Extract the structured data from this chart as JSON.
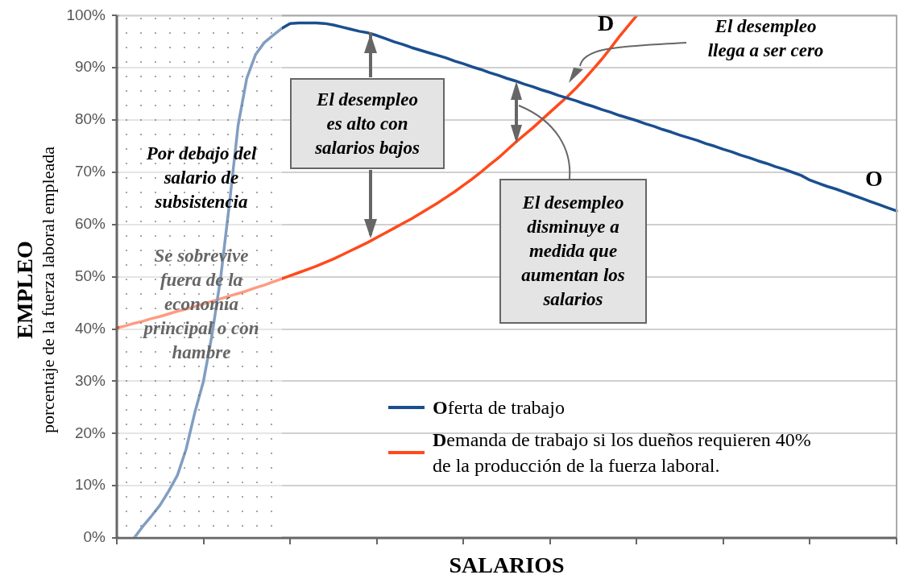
{
  "chart_data": {
    "type": "line",
    "xlabel": "SALARIOS",
    "ylabel": "EMPLEO\nporcentaje de la fuerza laboral empleada",
    "categories": [
      null,
      null,
      null,
      null,
      null,
      null,
      null,
      null,
      null,
      null,
      null,
      null,
      null,
      null,
      null,
      null,
      null,
      null,
      null,
      null,
      null,
      null,
      null,
      null,
      null,
      null,
      null,
      null,
      null,
      null,
      null,
      null,
      null,
      null,
      null,
      null,
      null,
      null,
      null,
      null,
      null,
      null,
      null,
      null,
      null,
      null,
      null,
      null,
      null,
      null,
      null,
      null,
      null,
      null,
      null,
      null,
      null,
      null,
      null,
      null,
      null,
      null,
      null,
      null,
      null,
      null,
      null,
      null,
      null,
      null,
      null,
      null,
      null,
      null,
      null,
      null,
      null,
      null,
      null,
      null,
      null,
      null,
      null,
      null,
      null,
      null,
      null,
      null,
      null,
      null,
      null
    ],
    "ylim": [
      0,
      100
    ],
    "yticks": [
      {
        "value": 0,
        "label": "0%"
      },
      {
        "value": 10,
        "label": "10%"
      },
      {
        "value": 20,
        "label": "20%"
      },
      {
        "value": 30,
        "label": "30%"
      },
      {
        "value": 40,
        "label": "40%"
      },
      {
        "value": 50,
        "label": "50%"
      },
      {
        "value": 60,
        "label": "60%"
      },
      {
        "value": 70,
        "label": "70%"
      },
      {
        "value": 80,
        "label": "80%"
      },
      {
        "value": 90,
        "label": "90%"
      },
      {
        "value": 100,
        "label": "100%"
      }
    ],
    "tick_labels": "y",
    "grid": "y",
    "legend": "bottom right",
    "marker": "none",
    "line_style": "solid",
    "series": [
      {
        "name": "Oferta de trabajo",
        "color": "#1a4f8f",
        "values": [
          null,
          null,
          0,
          2.2,
          4.2,
          6.3,
          9,
          12,
          17,
          24,
          30,
          39,
          50,
          64,
          79,
          88,
          92.5,
          94.8,
          96.2,
          97.5,
          98.5,
          98.6,
          98.6,
          98.6,
          98.5,
          98.2,
          97.8,
          97.4,
          97,
          96.7,
          96.2,
          95.6,
          95,
          94.5,
          93.9,
          93.4,
          92.9,
          92.4,
          91.9,
          91.3,
          90.8,
          90.2,
          89.7,
          89.1,
          88.6,
          88,
          87.5,
          86.9,
          86.4,
          85.8,
          85.3,
          84.7,
          84.2,
          83.7,
          83.1,
          82.6,
          82,
          81.5,
          80.9,
          80.4,
          79.9,
          79.3,
          78.8,
          78.2,
          77.7,
          77.1,
          76.6,
          76.1,
          75.5,
          75,
          74.4,
          73.9,
          73.3,
          72.8,
          72.2,
          71.7,
          71.1,
          70.6,
          70,
          69.4,
          68.5,
          67.9,
          67.3,
          66.8,
          66.2,
          65.6,
          65,
          64.4,
          63.8,
          63.2,
          62.6
        ]
      },
      {
        "name": "Demanda de trabajo si los dueños requieren 40% de la producción de la fuerza laboral.",
        "color": "#ff4a1c",
        "values": [
          40.2,
          40.6,
          41.1,
          41.5,
          42,
          42.4,
          42.9,
          43.4,
          43.8,
          44.3,
          44.8,
          45.3,
          45.8,
          46.3,
          46.8,
          47.3,
          47.9,
          48.4,
          49,
          49.6,
          50.2,
          50.8,
          51.4,
          52,
          52.7,
          53.4,
          54.2,
          55,
          55.8,
          56.6,
          57.5,
          58.4,
          59.3,
          60.2,
          61.1,
          62.1,
          63.1,
          64.1,
          65.2,
          66.3,
          67.5,
          68.7,
          70,
          71.4,
          72.7,
          74.2,
          75.7,
          77.1,
          78.5,
          80,
          81.5,
          83,
          84.5,
          86.1,
          87.9,
          89.8,
          91.7,
          93.8,
          96,
          98,
          100,
          null,
          null,
          null,
          null,
          null,
          null,
          null,
          null,
          null,
          null,
          null,
          null,
          null,
          null,
          null,
          null,
          null,
          null,
          null,
          null,
          null,
          null,
          null,
          null,
          null,
          null,
          null,
          null,
          null,
          null
        ]
      }
    ],
    "annotations": [
      "Por debajo del salario de subsistencia",
      "Se sobrevive fuera de la economía principal o con hambre",
      "El desempleo es alto con salarios bajos",
      "El desempleo disminuye a medida que aumentan los salarios",
      "El desempleo llega a ser cero",
      "D",
      "O"
    ]
  }
}
